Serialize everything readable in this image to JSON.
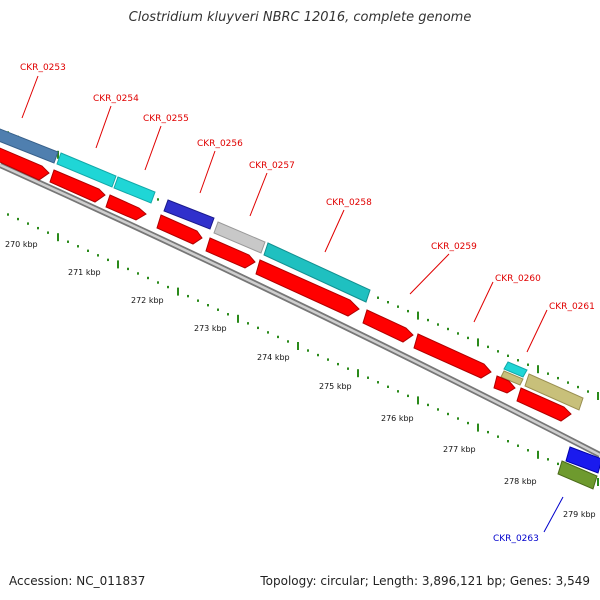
{
  "title": "Clostridium kluyveri NBRC 12016, complete genome",
  "footer": {
    "accession": "Accession: NC_011837",
    "summary": "Topology: circular; Length: 3,896,121 bp; Genes: 3,549"
  },
  "ruler": [
    {
      "label": "270 kbp"
    },
    {
      "label": "271 kbp"
    },
    {
      "label": "272 kbp"
    },
    {
      "label": "273 kbp"
    },
    {
      "label": "274 kbp"
    },
    {
      "label": "275 kbp"
    },
    {
      "label": "276 kbp"
    },
    {
      "label": "277 kbp"
    },
    {
      "label": "278 kbp"
    },
    {
      "label": "279 kbp"
    }
  ],
  "gene_labels": [
    {
      "label": "CKR_0253",
      "color": "#e00000"
    },
    {
      "label": "CKR_0254",
      "color": "#e00000"
    },
    {
      "label": "CKR_0255",
      "color": "#e00000"
    },
    {
      "label": "CKR_0256",
      "color": "#e00000"
    },
    {
      "label": "CKR_0257",
      "color": "#e00000"
    },
    {
      "label": "CKR_0258",
      "color": "#e00000"
    },
    {
      "label": "CKR_0259",
      "color": "#e00000"
    },
    {
      "label": "CKR_0260",
      "color": "#e00000"
    },
    {
      "label": "CKR_0261",
      "color": "#e00000"
    },
    {
      "label": "CKR_0263",
      "color": "#0000cc"
    }
  ],
  "colors": {
    "cds": "#ff0000",
    "backbone": "#888888",
    "ticks": "#2a8a1a",
    "steelblue": "#4f7faf",
    "cyan": "#1fd6d6",
    "blue": "#3030cc",
    "gray": "#c8c8c8",
    "teal": "#1fc0c0",
    "khaki": "#c8c07a",
    "olive": "#6e9a2e"
  }
}
